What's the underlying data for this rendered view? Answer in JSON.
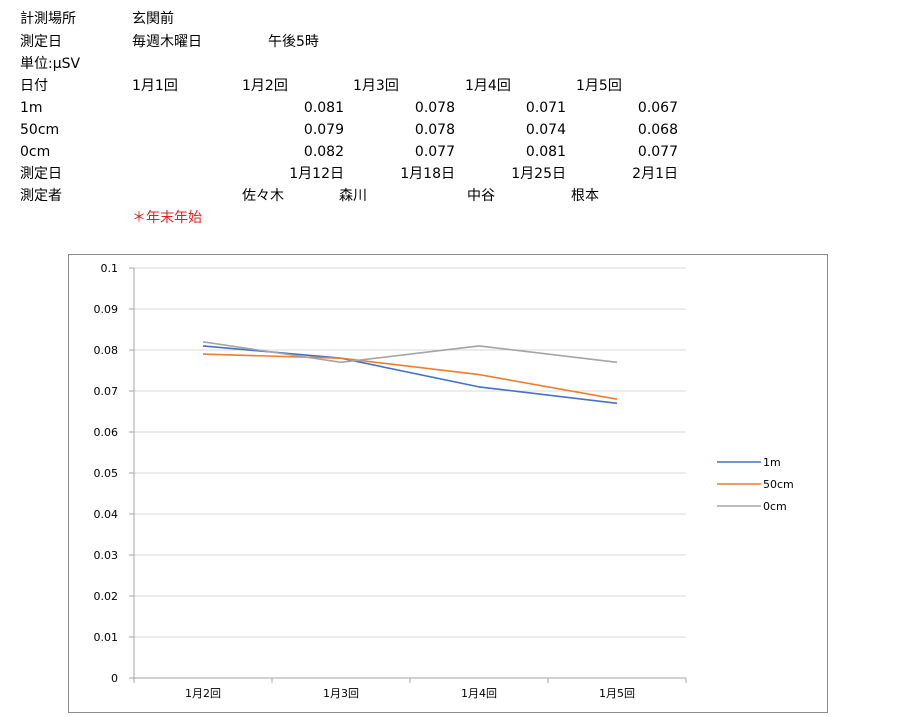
{
  "sheet": {
    "location_label": "計測場所",
    "location_value": "玄関前",
    "date_label": "測定日",
    "date_value_1": "毎週木曜日",
    "date_value_2": "午後5時",
    "unit": "単位:μSV",
    "header_label": "日付",
    "columns": [
      "1月1回",
      "1月2回",
      "1月3回",
      "1月4回",
      "1月5回"
    ],
    "rows": [
      {
        "label": "1m",
        "values": [
          "",
          "0.081",
          "0.078",
          "0.071",
          "0.067"
        ]
      },
      {
        "label": "50cm",
        "values": [
          "",
          "0.079",
          "0.078",
          "0.074",
          "0.068"
        ]
      },
      {
        "label": "0cm",
        "values": [
          "",
          "0.082",
          "0.077",
          "0.081",
          "0.077"
        ]
      }
    ],
    "measure_date_label": "測定日",
    "measure_dates": [
      "",
      "1月12日",
      "1月18日",
      "1月25日",
      "2月1日"
    ],
    "measurer_label": "測定者",
    "measurers": [
      "",
      "佐々木",
      "森川",
      "中谷",
      "根本"
    ],
    "note": "＊年末年始"
  },
  "chart_data": {
    "type": "line",
    "categories": [
      "1月2回",
      "1月3回",
      "1月4回",
      "1月5回"
    ],
    "series": [
      {
        "name": "1m",
        "values": [
          0.081,
          0.078,
          0.071,
          0.067
        ],
        "color": "#4472c4"
      },
      {
        "name": "50cm",
        "values": [
          0.079,
          0.078,
          0.074,
          0.068
        ],
        "color": "#ed7d31"
      },
      {
        "name": "0cm",
        "values": [
          0.082,
          0.077,
          0.081,
          0.077
        ],
        "color": "#a5a5a5"
      }
    ],
    "ylim": [
      0,
      0.1
    ],
    "yticks": [
      "0",
      "0.01",
      "0.02",
      "0.03",
      "0.04",
      "0.05",
      "0.06",
      "0.07",
      "0.08",
      "0.09",
      "0.1"
    ],
    "grid": true,
    "legend": "right"
  }
}
